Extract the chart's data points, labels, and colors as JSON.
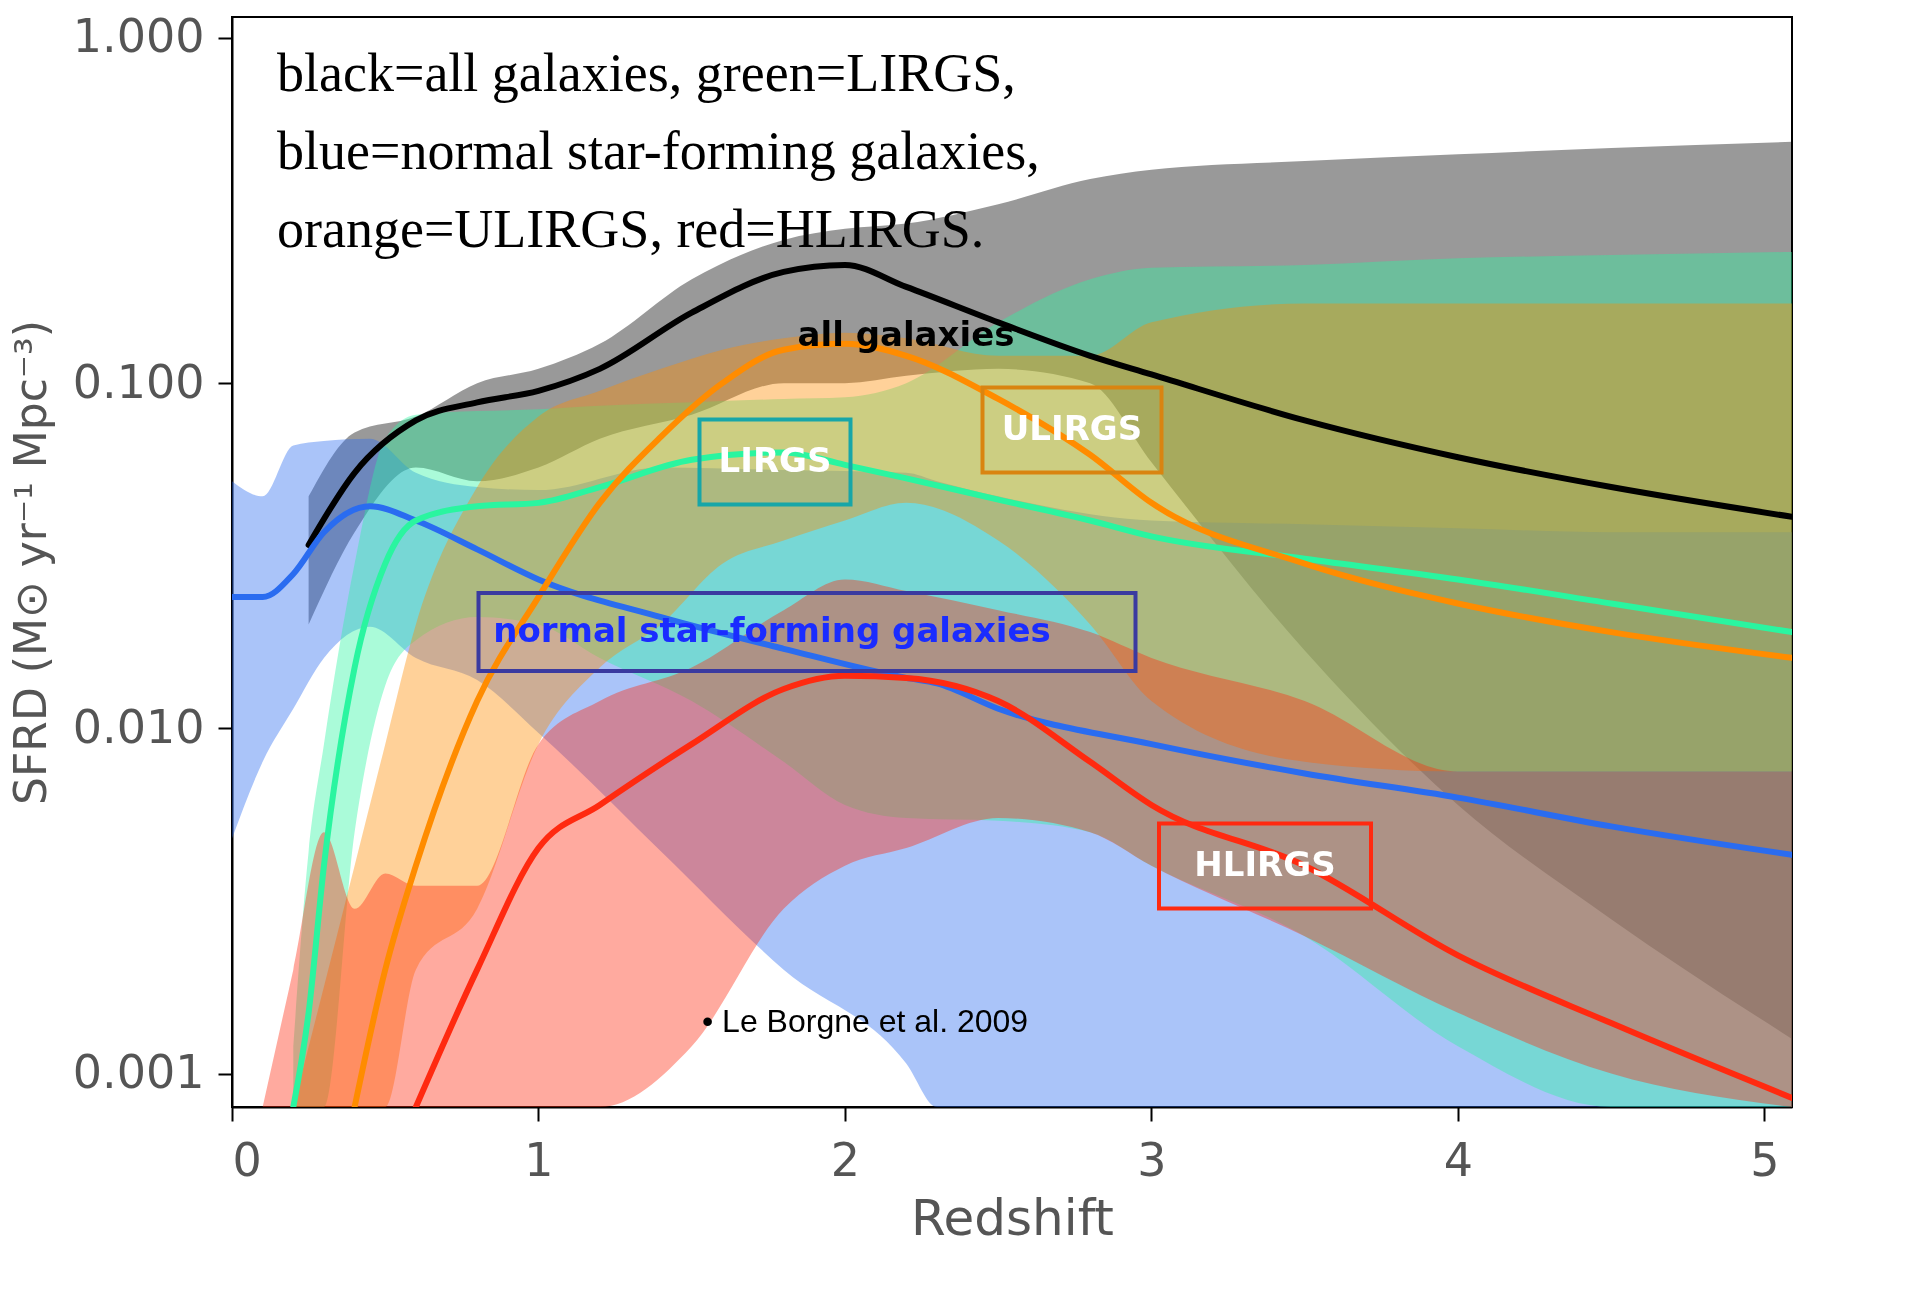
{
  "chart_data": {
    "type": "line",
    "xlabel": "Redshift",
    "ylabel": "SFRD (M⊙ yr⁻¹ Mpc⁻³)",
    "log": "y",
    "xlim": [
      0,
      5.09
    ],
    "xticks": [
      0,
      1,
      2,
      3,
      4,
      5
    ],
    "ylim": [
      0.0008,
      1.15
    ],
    "yticks": [
      {
        "value": 0.001,
        "label": "0.001"
      },
      {
        "value": 0.01,
        "label": "0.010"
      },
      {
        "value": 0.1,
        "label": "0.100"
      },
      {
        "value": 1,
        "label": "1.000"
      }
    ],
    "grid": false,
    "series": [
      {
        "name": "all galaxies",
        "color": "#000000",
        "x": [
          0.25,
          0.4,
          0.6,
          0.8,
          1.0,
          1.2,
          1.5,
          1.8,
          2.0,
          2.2,
          2.5,
          2.8,
          3.0,
          3.5,
          4.0,
          4.5,
          5.09
        ],
        "values": [
          0.034,
          0.055,
          0.078,
          0.088,
          0.095,
          0.11,
          0.16,
          0.21,
          0.22,
          0.19,
          0.15,
          0.12,
          0.106,
          0.078,
          0.061,
          0.05,
          0.041
        ],
        "lower": [
          0.02,
          0.037,
          0.057,
          0.052,
          0.057,
          0.069,
          0.081,
          0.1,
          0.1,
          0.105,
          0.11,
          0.1,
          0.059,
          0.0168,
          0.006,
          0.0028,
          0.00126
        ],
        "upper": [
          0.047,
          0.072,
          0.08,
          0.1,
          0.11,
          0.13,
          0.2,
          0.26,
          0.28,
          0.29,
          0.33,
          0.39,
          0.415,
          0.44,
          0.46,
          0.48,
          0.5
        ]
      },
      {
        "name": "normal star-forming galaxies",
        "color": "#2a6cf0",
        "x": [
          0,
          0.1,
          0.2,
          0.3,
          0.45,
          0.6,
          0.8,
          1.0,
          1.4,
          1.8,
          2.2,
          2.3,
          2.5,
          3.0,
          3.5,
          4.0,
          4.5,
          5.09
        ],
        "values": [
          0.024,
          0.024,
          0.028,
          0.037,
          0.044,
          0.04,
          0.033,
          0.027,
          0.021,
          0.017,
          0.014,
          0.0135,
          0.0114,
          0.009,
          0.0074,
          0.0063,
          0.0052,
          0.0043
        ],
        "lower": [
          0.0048,
          0.008,
          0.0114,
          0.016,
          0.0197,
          0.016,
          0.0138,
          0.0097,
          0.0044,
          0.002,
          0.00107,
          0.0008,
          0.0008,
          0.0008,
          0.0008,
          0.0008,
          0.0008,
          0.0008
        ],
        "upper": [
          0.052,
          0.047,
          0.066,
          0.068,
          0.069,
          0.055,
          0.05,
          0.049,
          0.057,
          0.056,
          0.055,
          0.052,
          0.047,
          0.04,
          0.039,
          0.038,
          0.037,
          0.037
        ]
      },
      {
        "name": "LIRGS",
        "color": "#2af5a0",
        "x": [
          0.2,
          0.25,
          0.3,
          0.4,
          0.5,
          0.6,
          0.8,
          1.0,
          1.2,
          1.5,
          1.8,
          2.0,
          2.2,
          2.5,
          2.8,
          3.0,
          3.5,
          4.0,
          4.5,
          5.09
        ],
        "values": [
          0.0008,
          0.0015,
          0.004,
          0.015,
          0.03,
          0.04,
          0.044,
          0.045,
          0.05,
          0.06,
          0.063,
          0.058,
          0.053,
          0.046,
          0.04,
          0.036,
          0.031,
          0.027,
          0.023,
          0.019
        ],
        "lower": [
          0.0008,
          0.0008,
          0.0008,
          0.005,
          0.0133,
          0.018,
          0.021,
          0.02,
          0.016,
          0.012,
          0.008,
          0.006,
          0.0055,
          0.0054,
          0.005,
          0.004,
          0.0025,
          0.0012,
          0.0008,
          0.0008
        ],
        "upper": [
          0.0012,
          0.0044,
          0.009,
          0.03,
          0.069,
          0.081,
          0.083,
          0.084,
          0.086,
          0.088,
          0.09,
          0.091,
          0.1,
          0.15,
          0.2,
          0.216,
          0.22,
          0.23,
          0.235,
          0.24
        ]
      },
      {
        "name": "ULIRGS",
        "color": "#ff8c00",
        "x": [
          0.2,
          0.4,
          0.5,
          0.6,
          0.8,
          1.0,
          1.2,
          1.4,
          1.6,
          1.8,
          2.0,
          2.2,
          2.5,
          2.8,
          3.0,
          3.5,
          4.0,
          4.5,
          5.09
        ],
        "values": [
          null,
          0.0008,
          0.002,
          0.004,
          0.012,
          0.024,
          0.045,
          0.07,
          0.1,
          0.125,
          0.13,
          0.12,
          0.09,
          0.062,
          0.045,
          0.03,
          0.023,
          0.019,
          0.016
        ],
        "lower": [
          0.0008,
          0.0008,
          0.0008,
          0.002,
          0.003,
          0.009,
          0.015,
          0.02,
          0.03,
          0.035,
          0.04,
          0.045,
          0.035,
          0.02,
          0.012,
          0.008,
          0.0075,
          0.0075,
          0.0075
        ],
        "upper": [
          0.0008,
          0.004,
          0.009,
          0.02,
          0.05,
          0.08,
          0.095,
          0.11,
          0.125,
          0.135,
          0.14,
          0.135,
          0.12,
          0.12,
          0.15,
          0.17,
          0.17,
          0.17,
          0.17
        ]
      },
      {
        "name": "HLIRGS",
        "color": "#ff2a10",
        "x": [
          0.1,
          0.2,
          0.3,
          0.4,
          0.5,
          0.6,
          0.8,
          1.0,
          1.2,
          1.5,
          1.8,
          2.0,
          2.2,
          2.5,
          2.8,
          3.0,
          3.5,
          4.0,
          4.5,
          5.09
        ],
        "values": [
          null,
          null,
          null,
          null,
          null,
          0.0008,
          0.002,
          0.0045,
          0.006,
          0.009,
          0.013,
          0.0142,
          0.014,
          0.012,
          0.008,
          0.006,
          0.004,
          0.0022,
          0.0014,
          0.00085
        ],
        "lower": [
          0.0008,
          0.0008,
          0.0008,
          0.0008,
          0.0008,
          0.0008,
          0.0008,
          0.0008,
          0.0008,
          0.0012,
          0.003,
          0.004,
          0.0045,
          0.0055,
          0.005,
          0.004,
          0.0025,
          0.0015,
          0.001,
          0.0008
        ],
        "upper": [
          0.0008,
          0.002,
          0.005,
          0.003,
          0.0038,
          0.0035,
          0.0035,
          0.009,
          0.012,
          0.015,
          0.022,
          0.027,
          0.025,
          0.022,
          0.019,
          0.016,
          0.012,
          0.0075,
          0.0075,
          0.0075
        ]
      }
    ],
    "annotations": [
      "black=all galaxies, green=LIRGS,",
      "blue=normal star-forming galaxies,",
      "orange=ULIRGS, red=HLIRGS.",
      "•      Le Borgne et al. 2009"
    ]
  }
}
